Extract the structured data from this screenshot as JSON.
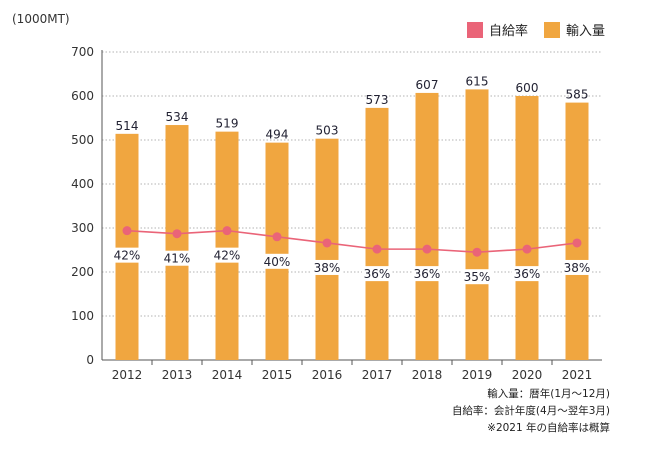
{
  "chart_data": {
    "type": "bar",
    "unit_label": "(1000MT)",
    "categories": [
      "2012",
      "2013",
      "2014",
      "2015",
      "2016",
      "2017",
      "2018",
      "2019",
      "2020",
      "2021"
    ],
    "series": [
      {
        "name": "輸入量",
        "type": "bar",
        "color": "#F0A640",
        "values": [
          514,
          534,
          519,
          494,
          503,
          573,
          607,
          615,
          600,
          585
        ],
        "labels": [
          "514",
          "534",
          "519",
          "494",
          "503",
          "573",
          "607",
          "615",
          "600",
          "585"
        ]
      },
      {
        "name": "自給率",
        "type": "line",
        "color": "#EA6478",
        "values": [
          42,
          41,
          42,
          40,
          38,
          36,
          36,
          35,
          36,
          38
        ],
        "labels": [
          "42%",
          "41%",
          "42%",
          "40%",
          "38%",
          "36%",
          "36%",
          "35%",
          "36%",
          "38%"
        ]
      }
    ],
    "yticks": [
      "0",
      "100",
      "200",
      "300",
      "400",
      "500",
      "600",
      "700"
    ],
    "ylim": [
      0,
      700
    ],
    "grid": true,
    "legend_position": "top-right"
  },
  "legend": {
    "rate_label": "自給率",
    "import_label": "輸入量"
  },
  "notes": {
    "line1": "輸入量：暦年(1月～12月)",
    "line2": "自給率：会計年度(4月～翌年3月)",
    "line3": "※2021 年の自給率は概算"
  }
}
